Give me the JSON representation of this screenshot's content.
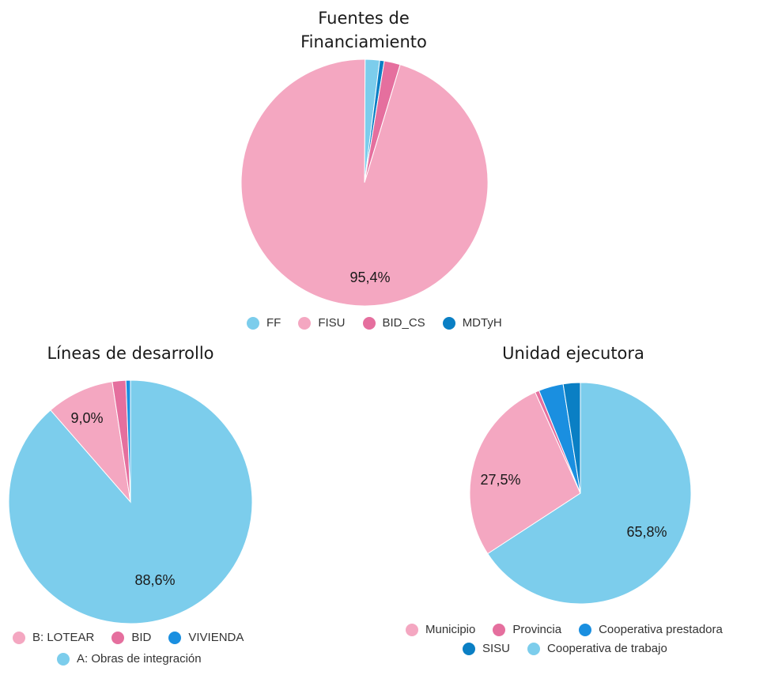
{
  "chart_data": [
    {
      "type": "pie",
      "title_lines": [
        "Fuentes de",
        "Financiamiento"
      ],
      "slices": [
        {
          "label": "FF",
          "value": 1.9,
          "color": "#7ccdec",
          "show_label": false
        },
        {
          "label": "MDTyH",
          "value": 0.6,
          "color": "#0a7fc4",
          "show_label": false
        },
        {
          "label": "BID_CS",
          "value": 2.1,
          "color": "#e56f9e",
          "show_label": false
        },
        {
          "label": "FISU",
          "value": 95.4,
          "value_label": "95,4%",
          "color": "#f4a7c1",
          "show_label": true
        }
      ],
      "legend": [
        {
          "label": "FF",
          "color": "#7ccdec"
        },
        {
          "label": "FISU",
          "color": "#f4a7c1"
        },
        {
          "label": "BID_CS",
          "color": "#e56f9e"
        },
        {
          "label": "MDTyH",
          "color": "#0a7fc4"
        }
      ]
    },
    {
      "type": "pie",
      "title_lines": [
        "Líneas de desarrollo"
      ],
      "slices": [
        {
          "label": "A: Obras de integración",
          "value": 88.6,
          "value_label": "88,6%",
          "color": "#7ccdec",
          "show_label": true
        },
        {
          "label": "B: LOTEAR",
          "value": 9.0,
          "value_label": "9,0%",
          "color": "#f4a7c1",
          "show_label": true
        },
        {
          "label": "BID",
          "value": 1.8,
          "color": "#e56f9e",
          "show_label": false
        },
        {
          "label": "VIVIENDA",
          "value": 0.6,
          "color": "#1a8fe0",
          "show_label": false
        }
      ],
      "legend": [
        {
          "label": "B: LOTEAR",
          "color": "#f4a7c1"
        },
        {
          "label": "BID",
          "color": "#e56f9e"
        },
        {
          "label": "VIVIENDA",
          "color": "#1a8fe0"
        },
        {
          "label": "A: Obras de integración",
          "color": "#7ccdec"
        }
      ]
    },
    {
      "type": "pie",
      "title_lines": [
        "Unidad ejecutora"
      ],
      "slices": [
        {
          "label": "Cooperativa de trabajo",
          "value": 65.8,
          "value_label": "65,8%",
          "color": "#7ccdec",
          "show_label": true
        },
        {
          "label": "Municipio",
          "value": 27.5,
          "value_label": "27,5%",
          "color": "#f4a7c1",
          "show_label": true
        },
        {
          "label": "Provincia",
          "value": 0.6,
          "color": "#e56f9e",
          "show_label": false
        },
        {
          "label": "Cooperativa prestadora",
          "value": 3.6,
          "color": "#1a8fe0",
          "show_label": false
        },
        {
          "label": "SISU",
          "value": 2.5,
          "color": "#0a7fc4",
          "show_label": false
        }
      ],
      "legend": [
        {
          "label": "Municipio",
          "color": "#f4a7c1"
        },
        {
          "label": "Provincia",
          "color": "#e56f9e"
        },
        {
          "label": "Cooperativa prestadora",
          "color": "#1a8fe0"
        },
        {
          "label": "SISU",
          "color": "#0a7fc4"
        },
        {
          "label": "Cooperativa de trabajo",
          "color": "#7ccdec"
        }
      ]
    }
  ]
}
